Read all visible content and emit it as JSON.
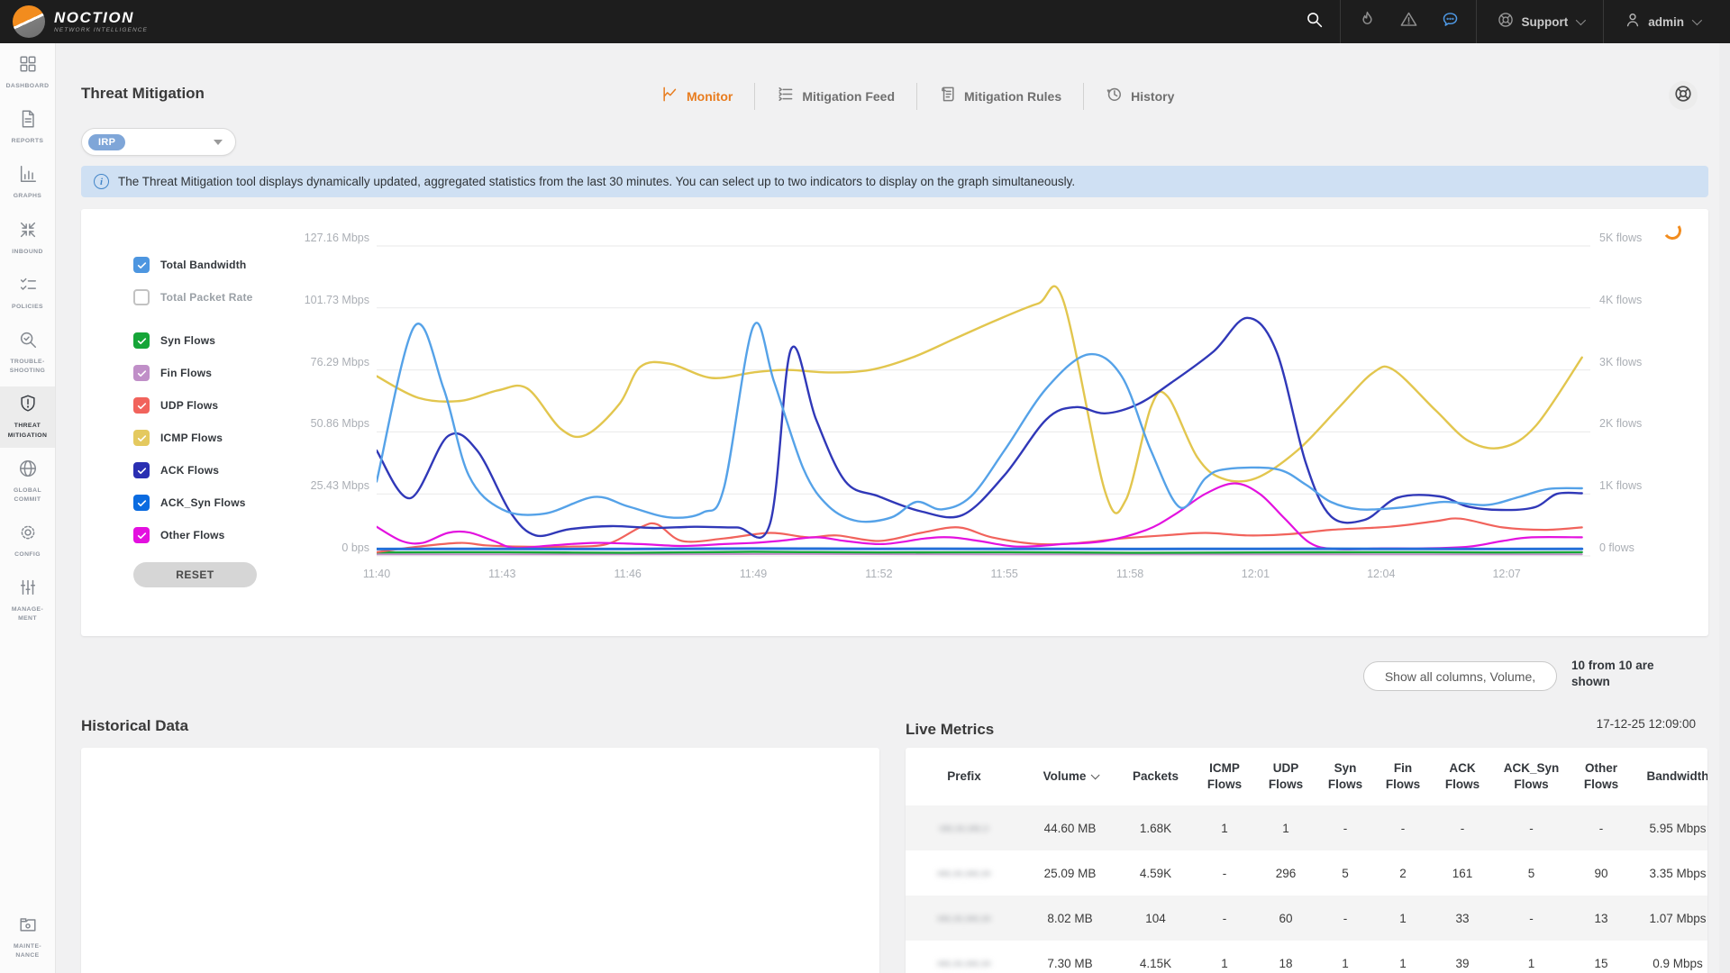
{
  "navbar": {
    "brand": "NOCTION",
    "brand_sub": "NETWORK INTELLIGENCE",
    "support_label": "Support",
    "user_label": "admin"
  },
  "sidebar": {
    "items": [
      {
        "id": "dashboard",
        "label": "DASHBOARD",
        "icon": "dashboard",
        "active": false
      },
      {
        "id": "reports",
        "label": "REPORTS",
        "icon": "reports",
        "active": false
      },
      {
        "id": "graphs",
        "label": "GRAPHS",
        "icon": "graphs",
        "active": false
      },
      {
        "id": "inbound",
        "label": "INBOUND",
        "icon": "inbound",
        "active": false
      },
      {
        "id": "policies",
        "label": "POLICIES",
        "icon": "policies",
        "active": false
      },
      {
        "id": "troubleshooting",
        "label": "TROUBLE- SHOOTING",
        "icon": "troubleshooting",
        "active": false
      },
      {
        "id": "threat-mitigation",
        "label": "THREAT MITIGATION",
        "icon": "threat",
        "active": true
      },
      {
        "id": "global-commit",
        "label": "GLOBAL COMMIT",
        "icon": "globe",
        "active": false
      },
      {
        "id": "config",
        "label": "CONFIG",
        "icon": "gear",
        "active": false
      },
      {
        "id": "management",
        "label": "MANAGE- MENT",
        "icon": "sliders",
        "active": false
      }
    ],
    "bottom_item": {
      "id": "maintenance",
      "label": "MAINTE- NANCE",
      "icon": "maintenance",
      "active": false
    }
  },
  "page": {
    "title": "Threat Mitigation",
    "filter_value": "IRP",
    "info_banner": "The Threat Mitigation tool displays dynamically updated, aggregated statistics from the last 30 minutes. You can select up to two indicators to display on the graph simultaneously.",
    "tabs": [
      {
        "id": "monitor",
        "label": "Monitor",
        "icon": "monitor",
        "active": true
      },
      {
        "id": "mitigation-feed",
        "label": "Mitigation Feed",
        "icon": "feed",
        "active": false
      },
      {
        "id": "mitigation-rules",
        "label": "Mitigation Rules",
        "icon": "rules",
        "active": false
      },
      {
        "id": "history",
        "label": "History",
        "icon": "history",
        "active": false
      }
    ]
  },
  "chart_panel": {
    "reset_label": "RESET",
    "legend": [
      {
        "label": "Total Bandwidth",
        "color": "#4D96E0",
        "checked": true
      },
      {
        "label": "Total Packet Rate",
        "color": "",
        "checked": false
      },
      {
        "label": "Syn Flows",
        "color": "#16A538",
        "checked": true
      },
      {
        "label": "Fin Flows",
        "color": "#C08FC8",
        "checked": true
      },
      {
        "label": "UDP Flows",
        "color": "#F1635C",
        "checked": true
      },
      {
        "label": "ICMP Flows",
        "color": "#E4C95F",
        "checked": true
      },
      {
        "label": "ACK Flows",
        "color": "#2A2FB2",
        "checked": true
      },
      {
        "label": "ACK_Syn Flows",
        "color": "#0A6BE0",
        "checked": true
      },
      {
        "label": "Other Flows",
        "color": "#E310DF",
        "checked": true
      }
    ]
  },
  "chart_data": {
    "type": "line",
    "x_axis": {
      "unit": "time",
      "start": "11:40",
      "end": "12:09",
      "minutes_span": 29,
      "ticks": [
        "11:40",
        "11:43",
        "11:46",
        "11:49",
        "11:52",
        "11:55",
        "11:58",
        "12:01",
        "12:04",
        "12:07"
      ]
    },
    "y_left": {
      "label_unit": "Mbps",
      "ticks": [
        "127.16 Mbps",
        "101.73 Mbps",
        "76.29 Mbps",
        "50.86 Mbps",
        "25.43 Mbps",
        "0 bps"
      ],
      "max": 127.16,
      "min": 0
    },
    "y_right": {
      "label_unit": "flows",
      "ticks": [
        "5K flows",
        "4K flows",
        "3K flows",
        "2K flows",
        "1K flows",
        "0 flows"
      ],
      "max": 5000,
      "min": 0
    },
    "grid": true,
    "legend_position": "left",
    "series": [
      {
        "name": "Fin Flows",
        "axis": "flows",
        "color": "#C08FC8",
        "width": 2,
        "points": [
          [
            0,
            25
          ],
          [
            5,
            25
          ],
          [
            10,
            30
          ],
          [
            15,
            25
          ],
          [
            20,
            25
          ],
          [
            25,
            25
          ],
          [
            28.8,
            25
          ]
        ]
      },
      {
        "name": "Syn Flows",
        "axis": "flows",
        "color": "#16A538",
        "width": 2.4,
        "points": [
          [
            0,
            55
          ],
          [
            3,
            60
          ],
          [
            6,
            50
          ],
          [
            9,
            65
          ],
          [
            12,
            55
          ],
          [
            15,
            60
          ],
          [
            18,
            50
          ],
          [
            21,
            55
          ],
          [
            24,
            60
          ],
          [
            27,
            55
          ],
          [
            28.8,
            60
          ]
        ]
      },
      {
        "name": "UDP Flows",
        "axis": "flows",
        "color": "#F1635C",
        "width": 2.2,
        "points": [
          [
            0,
            60
          ],
          [
            1,
            150
          ],
          [
            2,
            210
          ],
          [
            2.6,
            170
          ],
          [
            3.5,
            150
          ],
          [
            4.5,
            150
          ],
          [
            5.5,
            190
          ],
          [
            6.3,
            460
          ],
          [
            6.7,
            510
          ],
          [
            7.3,
            240
          ],
          [
            8.3,
            280
          ],
          [
            9.4,
            370
          ],
          [
            10.3,
            300
          ],
          [
            11,
            330
          ],
          [
            12,
            240
          ],
          [
            13,
            370
          ],
          [
            13.9,
            460
          ],
          [
            14.7,
            300
          ],
          [
            15.8,
            190
          ],
          [
            16.8,
            210
          ],
          [
            17.8,
            280
          ],
          [
            18.8,
            330
          ],
          [
            19.8,
            370
          ],
          [
            20.8,
            330
          ],
          [
            21.8,
            350
          ],
          [
            22.8,
            420
          ],
          [
            24.2,
            470
          ],
          [
            25.3,
            560
          ],
          [
            25.9,
            600
          ],
          [
            26.9,
            460
          ],
          [
            27.9,
            420
          ],
          [
            28.8,
            460
          ]
        ]
      },
      {
        "name": "Other Flows",
        "axis": "flows",
        "color": "#E312DF",
        "width": 2.2,
        "points": [
          [
            0,
            470
          ],
          [
            0.6,
            240
          ],
          [
            1.1,
            210
          ],
          [
            1.7,
            370
          ],
          [
            2.2,
            380
          ],
          [
            2.8,
            240
          ],
          [
            3.3,
            130
          ],
          [
            4.2,
            170
          ],
          [
            5.2,
            210
          ],
          [
            6.3,
            190
          ],
          [
            7.3,
            160
          ],
          [
            8.3,
            190
          ],
          [
            9,
            210
          ],
          [
            9.6,
            240
          ],
          [
            10.5,
            300
          ],
          [
            11.2,
            240
          ],
          [
            12.1,
            190
          ],
          [
            13.1,
            280
          ],
          [
            13.7,
            300
          ],
          [
            14.4,
            240
          ],
          [
            15.3,
            150
          ],
          [
            16.4,
            190
          ],
          [
            17.4,
            240
          ],
          [
            18.4,
            420
          ],
          [
            19.1,
            680
          ],
          [
            19.8,
            1000
          ],
          [
            20.5,
            1170
          ],
          [
            21.1,
            1000
          ],
          [
            21.7,
            600
          ],
          [
            22.3,
            210
          ],
          [
            22.9,
            110
          ],
          [
            24,
            120
          ],
          [
            25,
            120
          ],
          [
            26.1,
            150
          ],
          [
            26.9,
            240
          ],
          [
            27.6,
            300
          ],
          [
            28.8,
            300
          ]
        ]
      },
      {
        "name": "ICMP Flows",
        "axis": "flows",
        "color": "#E2C64E",
        "width": 2.4,
        "points": [
          [
            0,
            2900
          ],
          [
            1,
            2550
          ],
          [
            2,
            2500
          ],
          [
            2.9,
            2670
          ],
          [
            3.6,
            2700
          ],
          [
            4.4,
            2050
          ],
          [
            5,
            1950
          ],
          [
            5.8,
            2450
          ],
          [
            6.3,
            3050
          ],
          [
            7,
            3100
          ],
          [
            8,
            2870
          ],
          [
            9,
            2960
          ],
          [
            9.8,
            3000
          ],
          [
            10.8,
            2960
          ],
          [
            11.8,
            3000
          ],
          [
            12.8,
            3200
          ],
          [
            13.8,
            3500
          ],
          [
            14.8,
            3800
          ],
          [
            15.8,
            4070
          ],
          [
            16.4,
            4130
          ],
          [
            17.4,
            1050
          ],
          [
            17.9,
            900
          ],
          [
            18.5,
            2400
          ],
          [
            18.9,
            2570
          ],
          [
            19.6,
            1600
          ],
          [
            20.2,
            1250
          ],
          [
            21,
            1250
          ],
          [
            22,
            1700
          ],
          [
            23,
            2400
          ],
          [
            23.8,
            2950
          ],
          [
            24.3,
            3000
          ],
          [
            25.3,
            2350
          ],
          [
            26.1,
            1850
          ],
          [
            26.9,
            1750
          ],
          [
            27.7,
            2100
          ],
          [
            28.8,
            3200
          ]
        ]
      },
      {
        "name": "ACK Flows",
        "axis": "flows",
        "color": "#3038B8",
        "width": 2.4,
        "points": [
          [
            0,
            1700
          ],
          [
            0.8,
            930
          ],
          [
            1.7,
            1930
          ],
          [
            2.4,
            1700
          ],
          [
            3.2,
            700
          ],
          [
            3.8,
            330
          ],
          [
            4.6,
            430
          ],
          [
            5.6,
            480
          ],
          [
            6.6,
            450
          ],
          [
            7.6,
            470
          ],
          [
            8.6,
            460
          ],
          [
            9.4,
            520
          ],
          [
            9.9,
            3330
          ],
          [
            10.5,
            2200
          ],
          [
            11.2,
            1200
          ],
          [
            12,
            960
          ],
          [
            13,
            720
          ],
          [
            14,
            660
          ],
          [
            15,
            1300
          ],
          [
            16,
            2200
          ],
          [
            16.7,
            2400
          ],
          [
            17.4,
            2300
          ],
          [
            18.2,
            2450
          ],
          [
            19,
            2800
          ],
          [
            20,
            3300
          ],
          [
            20.8,
            3840
          ],
          [
            21.5,
            3300
          ],
          [
            22.2,
            1500
          ],
          [
            22.8,
            640
          ],
          [
            23.6,
            580
          ],
          [
            24.4,
            940
          ],
          [
            25.4,
            960
          ],
          [
            26.1,
            790
          ],
          [
            27,
            740
          ],
          [
            27.7,
            790
          ],
          [
            28.2,
            1000
          ],
          [
            28.8,
            1010
          ]
        ]
      },
      {
        "name": "ACK_Syn Flows",
        "axis": "flows",
        "color": "#55A2E8",
        "width": 2.4,
        "points": [
          [
            0,
            1200
          ],
          [
            0.9,
            3700
          ],
          [
            1.6,
            2700
          ],
          [
            2.2,
            1300
          ],
          [
            3,
            750
          ],
          [
            4,
            680
          ],
          [
            5.2,
            950
          ],
          [
            6,
            800
          ],
          [
            7,
            620
          ],
          [
            7.8,
            700
          ],
          [
            8.3,
            1100
          ],
          [
            9,
            3700
          ],
          [
            9.5,
            2800
          ],
          [
            10.2,
            1400
          ],
          [
            10.8,
            800
          ],
          [
            11.5,
            560
          ],
          [
            12.3,
            620
          ],
          [
            12.9,
            870
          ],
          [
            13.5,
            750
          ],
          [
            14.2,
            960
          ],
          [
            15,
            1700
          ],
          [
            16,
            2700
          ],
          [
            17,
            3250
          ],
          [
            17.8,
            2900
          ],
          [
            18.5,
            1700
          ],
          [
            19.2,
            780
          ],
          [
            19.8,
            1250
          ],
          [
            20.3,
            1400
          ],
          [
            21.5,
            1400
          ],
          [
            22.2,
            1150
          ],
          [
            22.8,
            870
          ],
          [
            23.5,
            750
          ],
          [
            24.5,
            780
          ],
          [
            25.5,
            870
          ],
          [
            26.5,
            820
          ],
          [
            27.3,
            950
          ],
          [
            28,
            1080
          ],
          [
            28.8,
            1090
          ]
        ]
      },
      {
        "name": "Total Bandwidth",
        "axis": "mbps",
        "color": "#2470D8",
        "width": 3,
        "points": [
          [
            0,
            2.8
          ],
          [
            3,
            2.9
          ],
          [
            6,
            2.8
          ],
          [
            9,
            3.0
          ],
          [
            12,
            2.9
          ],
          [
            15,
            2.9
          ],
          [
            18,
            2.8
          ],
          [
            21,
            2.9
          ],
          [
            24,
            2.9
          ],
          [
            27,
            2.8
          ],
          [
            28.8,
            2.9
          ]
        ]
      }
    ]
  },
  "table_controls": {
    "columns_button": "Show all columns, Volume,",
    "count_text_line1": "10 from 10 are",
    "count_text_line2": "shown"
  },
  "historical": {
    "title": "Historical Data"
  },
  "live_metrics": {
    "title": "Live Metrics",
    "timestamp": "17-12-25 12:09:00",
    "columns": [
      "Prefix",
      "Volume",
      "Packets",
      "ICMP Flows",
      "UDP Flows",
      "Syn Flows",
      "Fin Flows",
      "ACK Flows",
      "ACK_Syn Flows",
      "Other Flows",
      "Bandwidth"
    ],
    "sorted_column": "Volume",
    "rows": [
      {
        "prefix": "•••.••.•••.•",
        "prefix_redacted": true,
        "cells": [
          "44.60 MB",
          "1.68K",
          "1",
          "1",
          "-",
          "-",
          "-",
          "-",
          "-",
          "5.95 Mbps"
        ]
      },
      {
        "prefix": "•••.••.•••.••",
        "prefix_redacted": true,
        "cells": [
          "25.09 MB",
          "4.59K",
          "-",
          "296",
          "5",
          "2",
          "161",
          "5",
          "90",
          "3.35 Mbps"
        ]
      },
      {
        "prefix": "•••.••.•••.••",
        "prefix_redacted": true,
        "cells": [
          "8.02 MB",
          "104",
          "-",
          "60",
          "-",
          "1",
          "33",
          "-",
          "13",
          "1.07 Mbps"
        ]
      },
      {
        "prefix": "•••.••.•••.••",
        "prefix_redacted": true,
        "cells": [
          "7.30 MB",
          "4.15K",
          "1",
          "18",
          "1",
          "1",
          "39",
          "1",
          "15",
          "0.9 Mbps"
        ]
      }
    ]
  }
}
